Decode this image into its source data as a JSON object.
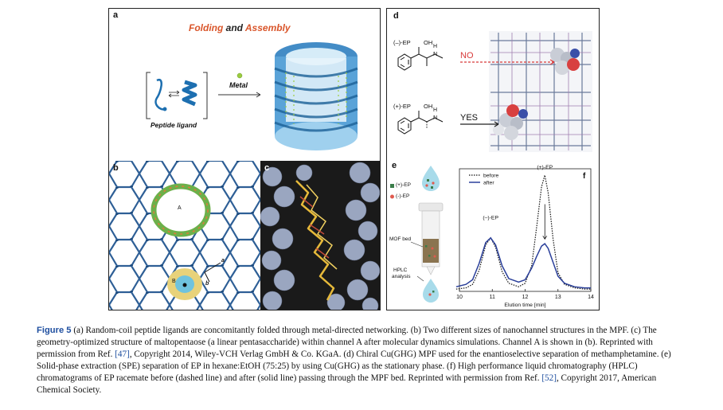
{
  "panel_a": {
    "label": "a",
    "title_folding": "Folding",
    "title_and": " and ",
    "title_assembly": "Assembly",
    "metal_label": "Metal",
    "ligand_label": "Peptide ligand"
  },
  "panel_b": {
    "label": "b",
    "channel_a": "A",
    "channel_b": "B",
    "arrow_b": "b",
    "arrow_a": "a"
  },
  "panel_c": {
    "label": "c"
  },
  "panel_d": {
    "label": "d",
    "minus_ep": "(–)-EP",
    "plus_ep": "(+)-EP",
    "oh": "OH",
    "h": "H",
    "n": "N",
    "no": "NO",
    "yes": "YES"
  },
  "panel_e": {
    "label": "e",
    "legend_plus": "(+)-EP",
    "legend_minus": "(-)-EP",
    "mof_bed": "MOF bed",
    "hplc": "HPLC",
    "analysis": "analysis",
    "plus_color": "#3a7d4a",
    "minus_color": "#e05a4f"
  },
  "chart_data": {
    "type": "line",
    "label": "f",
    "xlabel": "Elution time [min]",
    "xlim": [
      10,
      14
    ],
    "x_ticks": [
      10,
      11,
      12,
      13,
      14
    ],
    "legend": [
      "before",
      "after"
    ],
    "peak_labels": [
      {
        "text": "(–)-EP",
        "x": 10.95
      },
      {
        "text": "(+)-EP",
        "x": 12.6
      }
    ],
    "series": [
      {
        "name": "before",
        "style": "dashed",
        "x": [
          9.9,
          10.2,
          10.4,
          10.6,
          10.8,
          10.95,
          11.1,
          11.3,
          11.5,
          11.8,
          12.0,
          12.2,
          12.35,
          12.5,
          12.6,
          12.7,
          12.85,
          13.0,
          13.2,
          13.5,
          13.8,
          14.0
        ],
        "y": [
          0.02,
          0.03,
          0.06,
          0.18,
          0.4,
          0.46,
          0.38,
          0.17,
          0.07,
          0.04,
          0.07,
          0.22,
          0.55,
          0.9,
          1.0,
          0.85,
          0.45,
          0.16,
          0.06,
          0.03,
          0.02,
          0.02
        ]
      },
      {
        "name": "after",
        "style": "solid",
        "x": [
          9.9,
          10.2,
          10.4,
          10.6,
          10.8,
          10.95,
          11.1,
          11.3,
          11.5,
          11.8,
          12.0,
          12.2,
          12.35,
          12.5,
          12.6,
          12.7,
          12.85,
          13.0,
          13.2,
          13.5,
          13.8,
          14.0
        ],
        "y": [
          0.04,
          0.06,
          0.1,
          0.24,
          0.42,
          0.46,
          0.4,
          0.22,
          0.11,
          0.08,
          0.1,
          0.2,
          0.3,
          0.39,
          0.41,
          0.37,
          0.25,
          0.13,
          0.07,
          0.04,
          0.03,
          0.03
        ]
      }
    ]
  },
  "caption": {
    "fig_label": "Figure 5",
    "p1": " (a) Random-coil peptide ligands are concomitantly folded through metal-directed networking. (b) Two different sizes of nanochannel structures in the MPF. (c) The geometry-optimized structure of maltopentaose (a linear pentasaccharide) within channel A after molecular dynamics simulations. Channel A is shown in (b). Reprinted with permission from Ref. ",
    "ref1": "[47]",
    "p2": ", Copyright 2014, Wiley-VCH Verlag GmbH & Co. KGaA. (d) Chiral Cu(GHG) MPF used for the enantioselective separation of methamphetamine. (e) Solid-phase extraction (SPE) separation of EP in hexane:EtOH (75:25) by using Cu(GHG) as the stationary phase. (f) High performance liquid chromatography (HPLC) chromatograms of EP racemate before (dashed line) and after (solid line) passing through the MPF bed. Reprinted with permission from Ref. ",
    "ref2": "[52]",
    "p3": ", Copyright 2017, American Chemical Society."
  }
}
